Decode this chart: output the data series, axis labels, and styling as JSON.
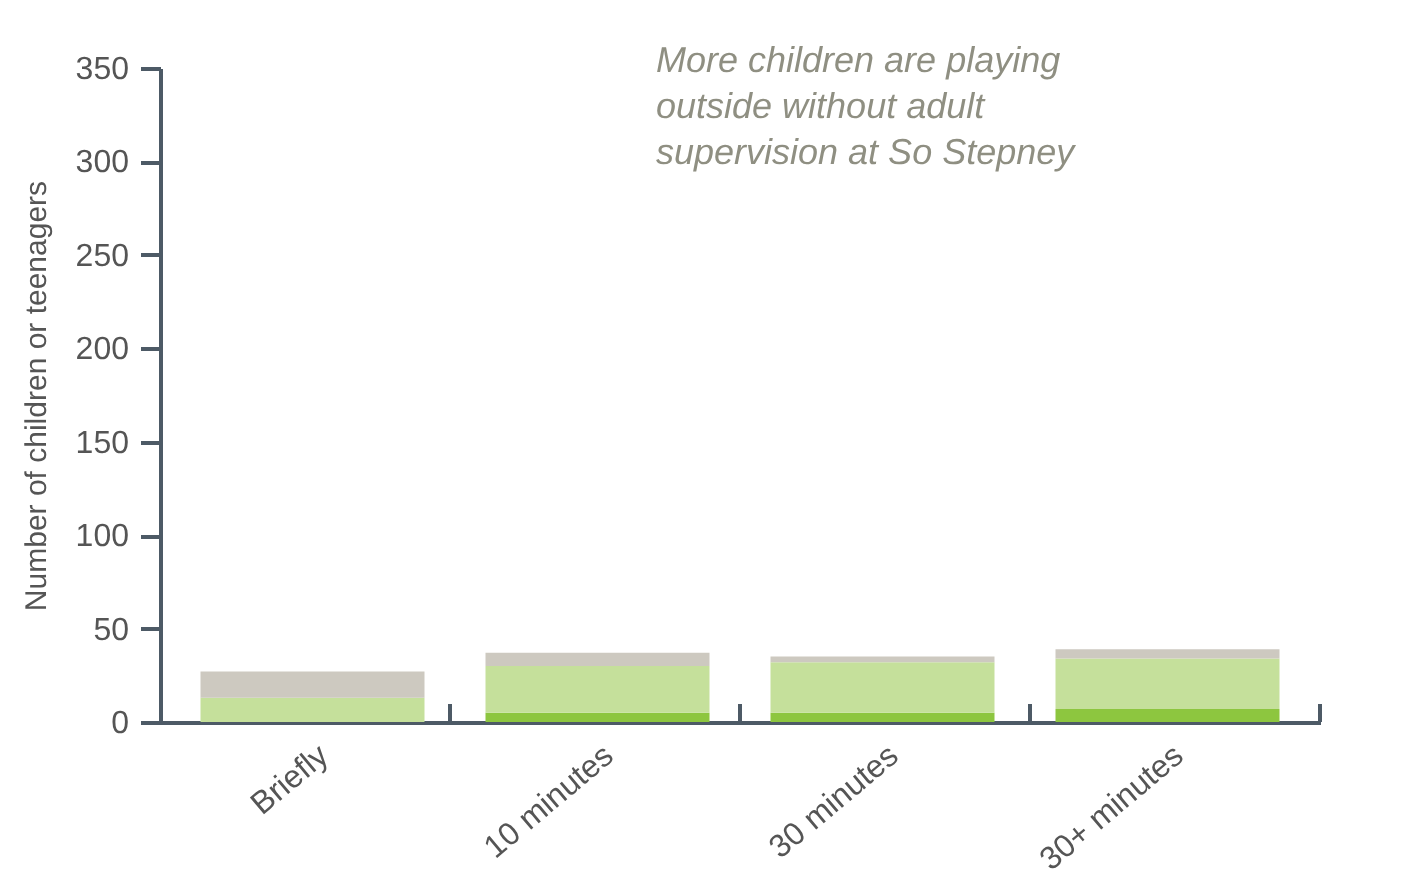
{
  "chart_data": {
    "type": "bar",
    "stacked": true,
    "ylabel": "Number of children or teenagers",
    "categories": [
      "Briefly",
      "10 minutes",
      "30 minutes",
      "30+ minutes"
    ],
    "series": [
      {
        "color": "#8dc63f",
        "values": [
          0,
          5,
          5,
          7
        ]
      },
      {
        "color": "#c5e09b",
        "values": [
          13,
          25,
          27,
          27
        ]
      },
      {
        "color": "#cdc9c0",
        "values": [
          14,
          7,
          3,
          5
        ]
      }
    ],
    "ylim": [
      0,
      350
    ],
    "yticks": [
      0,
      50,
      100,
      150,
      200,
      250,
      300,
      350
    ],
    "grid": false,
    "annotations": [
      "More children are playing\noutside without adult\nsupervision at So Stepney"
    ]
  }
}
